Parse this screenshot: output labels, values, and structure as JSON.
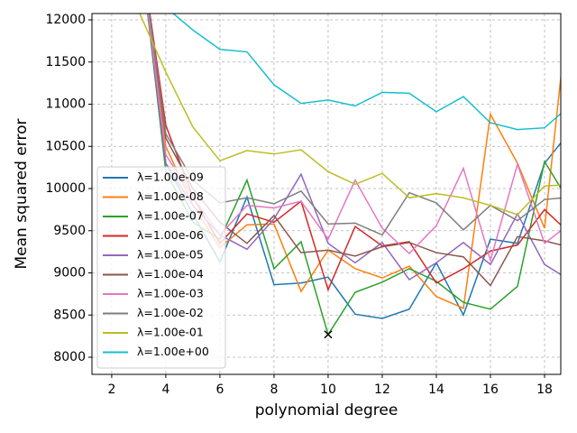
{
  "chart_data": {
    "type": "line",
    "xlabel": "polynomial degree",
    "ylabel": "Mean squared error",
    "x": [
      3,
      4,
      5,
      6,
      7,
      8,
      9,
      10,
      11,
      12,
      13,
      14,
      15,
      16,
      17,
      18,
      19
    ],
    "series": [
      {
        "name": "λ=1.00e-09",
        "color": "#1f77b4",
        "values": [
          13000,
          10300,
          9700,
          9130,
          9900,
          8860,
          8880,
          8950,
          8510,
          8460,
          8570,
          9120,
          8500,
          9400,
          9350,
          10300,
          10700
        ]
      },
      {
        "name": "λ=1.00e-08",
        "color": "#ff7f0e",
        "values": [
          13000,
          10500,
          9800,
          9300,
          9570,
          9580,
          8780,
          9270,
          9050,
          8940,
          9080,
          8720,
          8580,
          10880,
          10300,
          9530,
          12500
        ]
      },
      {
        "name": "λ=1.00e-07",
        "color": "#2ca02c",
        "values": [
          13000,
          10200,
          9600,
          9400,
          10100,
          9050,
          9370,
          8270,
          8770,
          8890,
          9050,
          8900,
          8650,
          8570,
          8840,
          10320,
          9800
        ]
      },
      {
        "name": "λ=1.00e-06",
        "color": "#d62728",
        "values": [
          13000,
          10750,
          9900,
          9350,
          9700,
          9600,
          9850,
          8800,
          9550,
          9320,
          9370,
          8880,
          9050,
          9260,
          9330,
          9750,
          9450
        ]
      },
      {
        "name": "λ=1.00e-05",
        "color": "#9467bd",
        "values": [
          13000,
          10300,
          9800,
          9450,
          9280,
          9640,
          10170,
          9350,
          9120,
          9360,
          8920,
          9120,
          9360,
          9100,
          9700,
          9100,
          8900
        ]
      },
      {
        "name": "λ=1.00e-04",
        "color": "#8c564b",
        "values": [
          13000,
          10600,
          10000,
          9600,
          9350,
          9680,
          9240,
          9270,
          9200,
          9310,
          9360,
          9240,
          9190,
          8850,
          9430,
          9380,
          9300
        ]
      },
      {
        "name": "λ=1.00e-03",
        "color": "#e377c2",
        "values": [
          13000,
          10400,
          9900,
          9450,
          9800,
          9770,
          9850,
          9400,
          10100,
          9530,
          9230,
          9560,
          10240,
          9150,
          10290,
          9350,
          9600
        ]
      },
      {
        "name": "λ=1.00e-02",
        "color": "#7f7f7f",
        "values": [
          13000,
          10650,
          10100,
          9830,
          9890,
          9820,
          9970,
          9580,
          9590,
          9450,
          9950,
          9830,
          9510,
          9800,
          9620,
          9870,
          9900
        ]
      },
      {
        "name": "λ=1.00e-01",
        "color": "#bcbd22",
        "values": [
          12100,
          11380,
          10730,
          10330,
          10450,
          10410,
          10460,
          10200,
          10050,
          10180,
          9890,
          9940,
          9890,
          9800,
          9690,
          10030,
          10050
        ]
      },
      {
        "name": "λ=1.00e+00",
        "color": "#17becf",
        "values": [
          12400,
          12150,
          11880,
          11650,
          11620,
          11230,
          11010,
          11050,
          10980,
          11140,
          11130,
          10910,
          11090,
          10780,
          10700,
          10720,
          11000
        ]
      }
    ],
    "marker": {
      "x": 10,
      "y": 8270,
      "color": "#000000"
    },
    "xlim": [
      1.27,
      18.6
    ],
    "ylim": [
      7797,
      12075
    ],
    "xticks": [
      2,
      4,
      6,
      8,
      10,
      12,
      14,
      16,
      18
    ],
    "yticks": [
      8000,
      8500,
      9000,
      9500,
      10000,
      10500,
      11000,
      11500,
      12000
    ],
    "grid": true,
    "legend": "lower left"
  }
}
